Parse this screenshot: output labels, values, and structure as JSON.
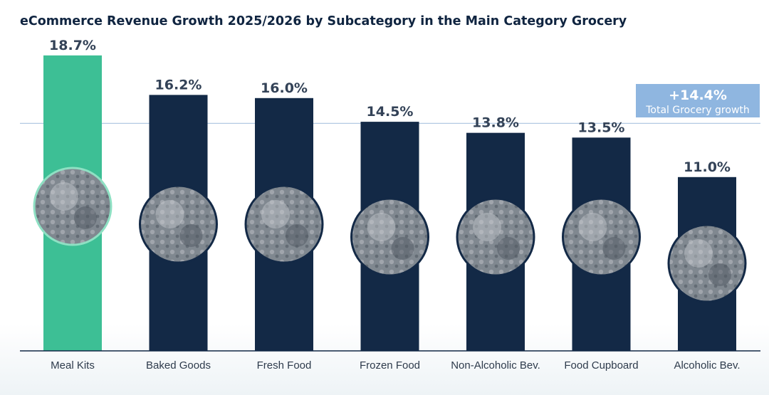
{
  "chart_data": {
    "type": "bar",
    "title": "eCommerce Revenue Growth 2025/2026 by Subcategory in the Main Category Grocery",
    "xlabel": "",
    "ylabel": "",
    "ylim": [
      0,
      19
    ],
    "categories": [
      "Meal Kits",
      "Baked Goods",
      "Fresh Food",
      "Frozen Food",
      "Non-Alcoholic Bev.",
      "Food Cupboard",
      "Alcoholic Bev."
    ],
    "values": [
      18.7,
      16.2,
      16.0,
      14.5,
      13.8,
      13.5,
      11.0
    ],
    "value_labels": [
      "18.7%",
      "16.2%",
      "16.0%",
      "14.5%",
      "13.8%",
      "13.5%",
      "11.0%"
    ],
    "icons": [
      "meal-kit-box-icon",
      "bread-rolls-icon",
      "fresh-vegetables-icon",
      "frozen-food-icon",
      "beverage-bottles-icon",
      "canned-food-icon",
      "liquor-bottles-icon"
    ],
    "highlight_index": 0,
    "reference_line": {
      "value": 14.4,
      "label_value": "+14.4%",
      "label_text": "Total Grocery growth"
    },
    "colors": {
      "bar": "#132946",
      "highlight_bar": "#3dbf95",
      "reference_line": "#a9c3e0",
      "reference_box": "#8fb6e0",
      "axis": "#132946",
      "circle_fill": "#7c848d"
    }
  }
}
